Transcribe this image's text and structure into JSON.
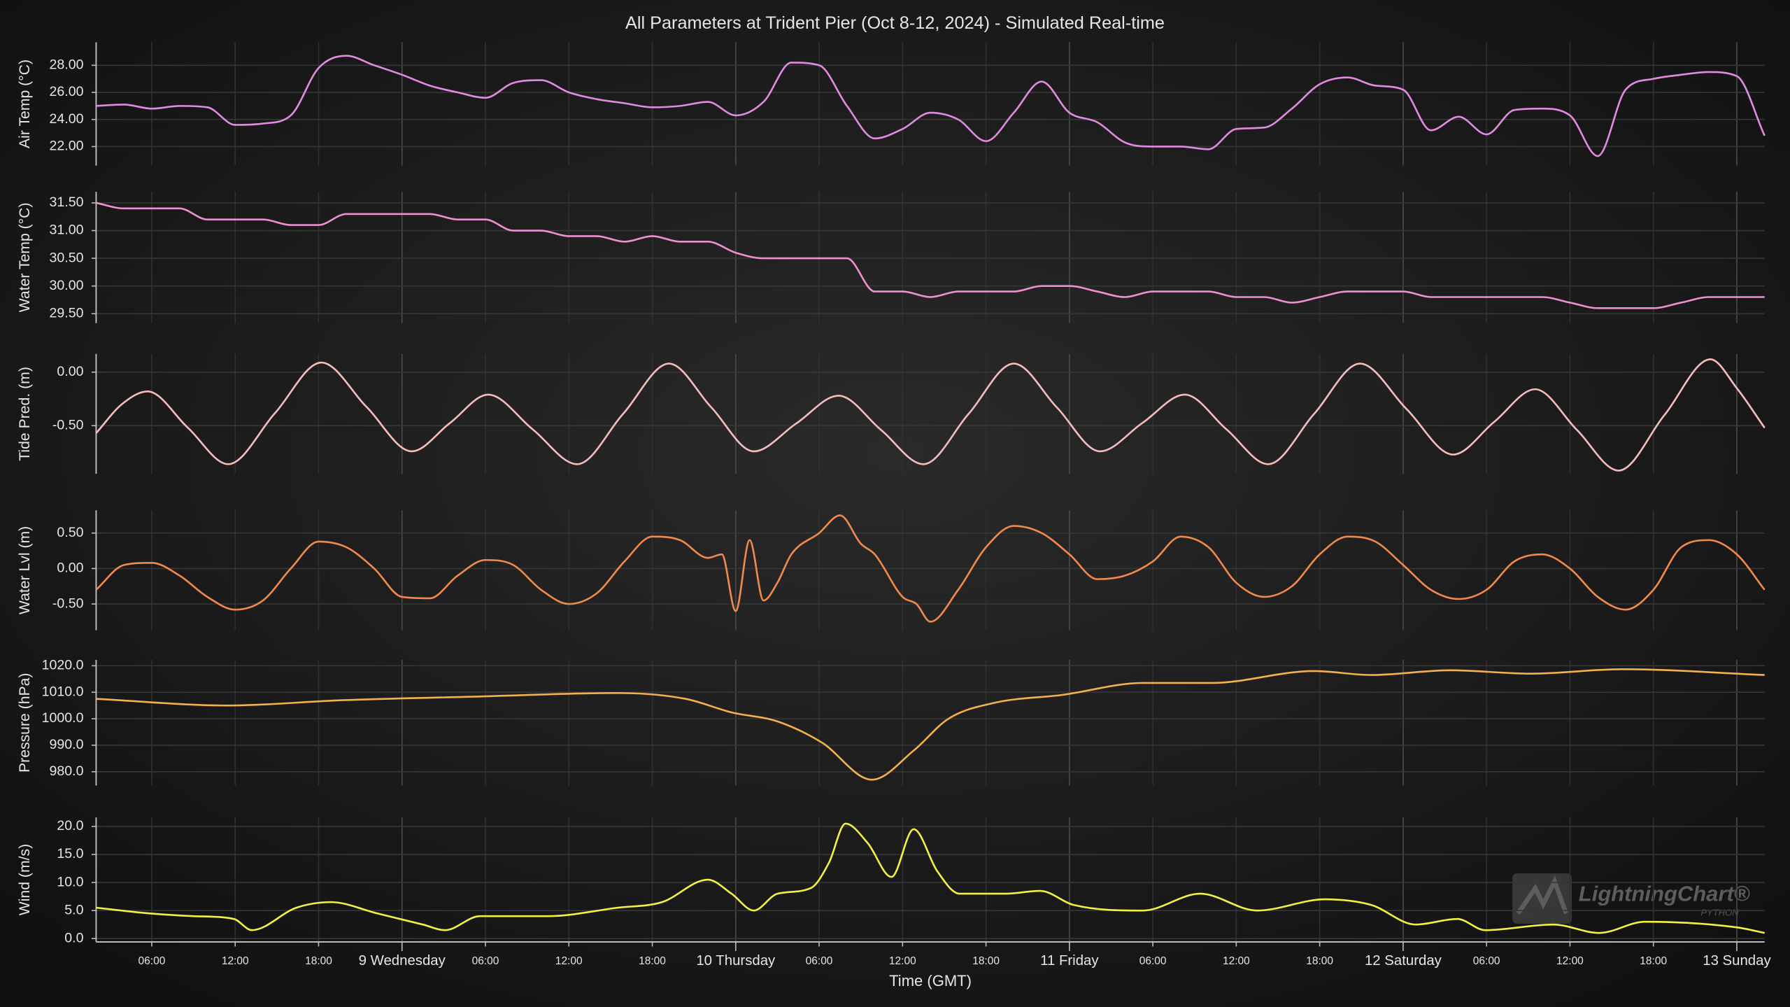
{
  "chart_data": [
    {
      "type": "line",
      "title": "All Parameters at Trident Pier (Oct 8-12, 2024) - Simulated Real-time",
      "ylabel": "Air Temp (°C)",
      "color": "#e08be0",
      "grid": true,
      "x": [
        2,
        4,
        6,
        8,
        10,
        12,
        14,
        16,
        18,
        20,
        22,
        24,
        26,
        28,
        30,
        32,
        34,
        36,
        38,
        40,
        42,
        44,
        46,
        48,
        50,
        52,
        54,
        56,
        58,
        60,
        62,
        64,
        66,
        68,
        70,
        72,
        74,
        76,
        78,
        80,
        82,
        84,
        86,
        88,
        90,
        92,
        94,
        96,
        98,
        100,
        102,
        104,
        106,
        108,
        110,
        112,
        114,
        116,
        118,
        120,
        122
      ],
      "values": [
        25.0,
        25.1,
        24.8,
        25.0,
        24.9,
        23.6,
        23.7,
        24.3,
        27.8,
        28.7,
        28.0,
        27.3,
        26.5,
        26.0,
        25.6,
        26.7,
        26.9,
        26.0,
        25.5,
        25.2,
        24.9,
        25.0,
        25.3,
        24.3,
        25.3,
        28.2,
        28.0,
        25.0,
        22.6,
        23.3,
        24.5,
        24.0,
        22.4,
        24.5,
        26.8,
        24.5,
        23.8,
        22.3,
        22.0,
        22.0,
        21.8,
        23.3,
        23.4,
        24.8,
        26.6,
        27.1,
        26.5,
        26.2,
        23.2,
        24.2,
        22.9,
        24.7,
        24.8,
        24.3,
        21.3,
        26.2,
        27.0,
        27.3,
        27.5,
        27.2,
        22.8
      ],
      "xlim": [
        2,
        122
      ],
      "ylim": [
        20.6,
        29.7
      ],
      "yticks": [
        {
          "value": 22,
          "label": "22.00"
        },
        {
          "value": 24,
          "label": "24.00"
        },
        {
          "value": 26,
          "label": "26.00"
        },
        {
          "value": 28,
          "label": "28.00"
        }
      ]
    },
    {
      "type": "line",
      "ylabel": "Water Temp (°C)",
      "color": "#ee8fcf",
      "grid": true,
      "x": [
        2,
        4,
        6,
        8,
        10,
        12,
        14,
        16,
        18,
        20,
        22,
        24,
        26,
        28,
        30,
        32,
        34,
        36,
        38,
        40,
        42,
        44,
        46,
        48,
        50,
        52,
        54,
        56,
        58,
        60,
        62,
        64,
        66,
        68,
        70,
        72,
        74,
        76,
        78,
        80,
        82,
        84,
        86,
        88,
        90,
        92,
        94,
        96,
        98,
        100,
        102,
        104,
        106,
        108,
        110,
        112,
        114,
        116,
        118,
        120,
        122
      ],
      "values": [
        31.5,
        31.4,
        31.4,
        31.4,
        31.2,
        31.2,
        31.2,
        31.1,
        31.1,
        31.3,
        31.3,
        31.3,
        31.3,
        31.2,
        31.2,
        31.0,
        31.0,
        30.9,
        30.9,
        30.8,
        30.9,
        30.8,
        30.8,
        30.6,
        30.5,
        30.5,
        30.5,
        30.5,
        29.9,
        29.9,
        29.8,
        29.9,
        29.9,
        29.9,
        30.0,
        30.0,
        29.9,
        29.8,
        29.9,
        29.9,
        29.9,
        29.8,
        29.8,
        29.7,
        29.8,
        29.9,
        29.9,
        29.9,
        29.8,
        29.8,
        29.8,
        29.8,
        29.8,
        29.7,
        29.6,
        29.6,
        29.6,
        29.7,
        29.8,
        29.8,
        29.8
      ],
      "xlim": [
        2,
        122
      ],
      "ylim": [
        29.33,
        31.7
      ],
      "yticks": [
        {
          "value": 29.5,
          "label": "29.50"
        },
        {
          "value": 30,
          "label": "30.00"
        },
        {
          "value": 30.5,
          "label": "30.50"
        },
        {
          "value": 31,
          "label": "31.00"
        },
        {
          "value": 31.5,
          "label": "31.50"
        }
      ]
    },
    {
      "type": "line",
      "ylabel": "Tide Pred. (m)",
      "color": "#f6bcbc",
      "grid": true,
      "x": [
        2,
        3.85,
        5.7,
        8.6,
        11.5,
        14.85,
        18.2,
        21.45,
        24.7,
        27.45,
        30.2,
        33.4,
        36.6,
        39.9,
        43.2,
        46.25,
        49.3,
        52.35,
        55.4,
        58.45,
        61.5,
        64.75,
        68,
        71.1,
        74.2,
        77.25,
        80.3,
        83.3,
        86.3,
        89.6,
        92.9,
        96.25,
        99.6,
        102.55,
        105.5,
        108.5,
        111.5,
        114.8,
        118.1,
        120,
        122
      ],
      "values": [
        -0.57,
        -0.3,
        -0.18,
        -0.52,
        -0.86,
        -0.385,
        0.09,
        -0.325,
        -0.74,
        -0.475,
        -0.21,
        -0.535,
        -0.86,
        -0.39,
        0.08,
        -0.33,
        -0.74,
        -0.48,
        -0.22,
        -0.54,
        -0.86,
        -0.39,
        0.08,
        -0.33,
        -0.74,
        -0.475,
        -0.21,
        -0.535,
        -0.86,
        -0.39,
        0.08,
        -0.345,
        -0.77,
        -0.465,
        -0.16,
        -0.54,
        -0.92,
        -0.4,
        0.12,
        -0.15,
        -0.52
      ],
      "xlim": [
        2,
        122
      ],
      "ylim": [
        -0.95,
        0.17
      ],
      "yticks": [
        {
          "value": -0.5,
          "label": "-0.50"
        },
        {
          "value": 0,
          "label": "0.00"
        }
      ]
    },
    {
      "type": "line",
      "ylabel": "Water Lvl (m)",
      "color": "#f08a4c",
      "grid": true,
      "x": [
        2,
        4,
        6,
        8,
        10,
        12,
        14,
        16,
        18,
        20,
        22,
        24,
        26,
        28,
        30,
        32,
        34,
        36,
        38,
        40,
        42,
        44,
        46,
        47,
        48,
        49,
        50,
        51,
        52,
        54,
        55.5,
        57,
        58,
        60,
        61,
        62,
        64,
        66,
        68,
        70,
        72,
        74,
        76,
        78,
        80,
        82,
        84,
        86,
        88,
        90,
        92,
        94,
        96,
        98,
        100,
        102,
        104,
        106,
        108,
        110,
        112,
        114,
        116,
        118,
        120,
        122
      ],
      "values": [
        -0.3,
        0.05,
        0.08,
        -0.1,
        -0.4,
        -0.58,
        -0.45,
        0.0,
        0.38,
        0.3,
        0.0,
        -0.4,
        -0.42,
        -0.1,
        0.12,
        0.05,
        -0.3,
        -0.5,
        -0.35,
        0.1,
        0.45,
        0.4,
        0.15,
        0.2,
        -0.6,
        0.4,
        -0.45,
        -0.2,
        0.2,
        0.5,
        0.75,
        0.35,
        0.2,
        -0.4,
        -0.5,
        -0.75,
        -0.3,
        0.3,
        0.6,
        0.5,
        0.2,
        -0.15,
        -0.1,
        0.1,
        0.45,
        0.3,
        -0.2,
        -0.4,
        -0.25,
        0.2,
        0.45,
        0.38,
        0.05,
        -0.3,
        -0.43,
        -0.3,
        0.1,
        0.2,
        0.0,
        -0.4,
        -0.58,
        -0.3,
        0.3,
        0.4,
        0.2,
        -0.3
      ],
      "xlim": [
        2,
        122
      ],
      "ylim": [
        -0.87,
        0.82
      ],
      "yticks": [
        {
          "value": -0.5,
          "label": "-0.50"
        },
        {
          "value": 0,
          "label": "0.00"
        },
        {
          "value": 0.5,
          "label": "0.50"
        }
      ]
    },
    {
      "type": "line",
      "ylabel": "Pressure (hPa)",
      "color": "#f4b04c",
      "grid": true,
      "x": [
        2,
        11.5,
        19.7,
        29.6,
        39.5,
        44.4,
        47.7,
        51,
        54.2,
        57.8,
        60.8,
        63.3,
        66.6,
        71.5,
        77.3,
        82.2,
        89.6,
        93.7,
        99.4,
        105.2,
        111.8,
        122
      ],
      "values": [
        1007.5,
        1005,
        1007,
        1008.4,
        1009.7,
        1007.5,
        1002.4,
        999,
        991,
        977,
        988,
        1000,
        1006,
        1009,
        1013.5,
        1013.5,
        1018,
        1016.5,
        1018.3,
        1017,
        1018.7,
        1016.5
      ],
      "xlim": [
        2,
        122
      ],
      "ylim": [
        974.8,
        1022.2
      ],
      "yticks": [
        {
          "value": 980,
          "label": "980.0"
        },
        {
          "value": 990,
          "label": "990.0"
        },
        {
          "value": 1000,
          "label": "1000.0"
        },
        {
          "value": 1010,
          "label": "1010.0"
        },
        {
          "value": 1020,
          "label": "1020.0"
        }
      ]
    },
    {
      "type": "line",
      "ylabel": "Wind (m/s)",
      "xlabel": "Time (GMT)",
      "color": "#f2f046",
      "grid": true,
      "x": [
        2,
        5.8,
        9,
        11.9,
        13.2,
        16.4,
        18.9,
        22.2,
        25.5,
        27.1,
        29.6,
        34.5,
        39.5,
        42.7,
        46,
        47.7,
        49.3,
        51,
        53.4,
        54.7,
        55.9,
        57.5,
        59.2,
        60.8,
        62.5,
        64.1,
        67.4,
        69.9,
        72.3,
        77.3,
        81.4,
        85.5,
        90.4,
        93.7,
        96.9,
        99.9,
        101.9,
        106.8,
        110.1,
        113.4,
        120,
        122
      ],
      "values": [
        5.5,
        4.5,
        4,
        3.5,
        1.5,
        5.5,
        6.5,
        4.5,
        2.5,
        1.5,
        4,
        4,
        5.5,
        6.5,
        10.5,
        8,
        5,
        8,
        9,
        13.5,
        20.5,
        17,
        11,
        19.5,
        12,
        8,
        8,
        8.5,
        6,
        5,
        8,
        5,
        7,
        6,
        2.5,
        3.5,
        1.5,
        2.5,
        1,
        3,
        2,
        1
      ],
      "xlim": [
        2,
        122
      ],
      "ylim": [
        -0.6,
        21.6
      ],
      "yticks": [
        {
          "value": 0,
          "label": "0.0"
        },
        {
          "value": 5,
          "label": "5.0"
        },
        {
          "value": 10,
          "label": "10.0"
        },
        {
          "value": 15,
          "label": "15.0"
        },
        {
          "value": 20,
          "label": "20.0"
        }
      ],
      "xticks": [
        {
          "value": 6,
          "label": "06:00"
        },
        {
          "value": 12,
          "label": "12:00"
        },
        {
          "value": 18,
          "label": "18:00"
        },
        {
          "value": 24,
          "label": "9 Wednesday"
        },
        {
          "value": 30,
          "label": "06:00"
        },
        {
          "value": 36,
          "label": "12:00"
        },
        {
          "value": 42,
          "label": "18:00"
        },
        {
          "value": 48,
          "label": "10 Thursday"
        },
        {
          "value": 54,
          "label": "06:00"
        },
        {
          "value": 60,
          "label": "12:00"
        },
        {
          "value": 66,
          "label": "18:00"
        },
        {
          "value": 72,
          "label": "11 Friday"
        },
        {
          "value": 78,
          "label": "06:00"
        },
        {
          "value": 84,
          "label": "12:00"
        },
        {
          "value": 90,
          "label": "18:00"
        },
        {
          "value": 96,
          "label": "12 Saturday"
        },
        {
          "value": 102,
          "label": "06:00"
        },
        {
          "value": 108,
          "label": "12:00"
        },
        {
          "value": 114,
          "label": "18:00"
        },
        {
          "value": 120,
          "label": "13 Sunday"
        }
      ]
    }
  ],
  "watermark": {
    "brand": "LightningChart®",
    "edition": "PYTHON"
  }
}
